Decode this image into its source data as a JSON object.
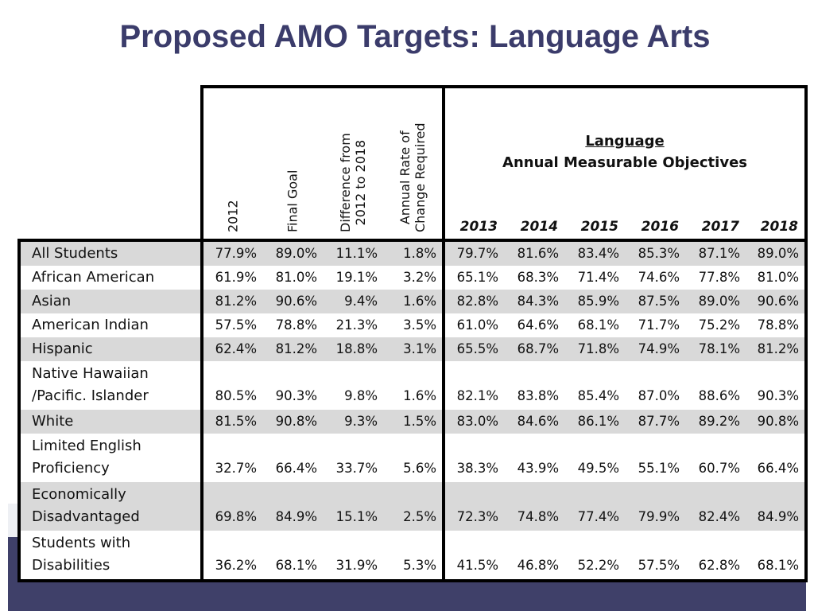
{
  "slide": {
    "title": "Proposed AMO Targets: Language Arts"
  },
  "table": {
    "column_headers": [
      "2012",
      "Final Goal",
      "Difference from 2012 to 2018",
      "Annual Rate of Change Required"
    ],
    "column_headers_lines": [
      [
        "2012"
      ],
      [
        "Final Goal"
      ],
      [
        "Difference from",
        "2012 to 2018"
      ],
      [
        "Annual Rate of",
        "Change Required"
      ]
    ],
    "objectives_heading_line1": "Language",
    "objectives_heading_line2": "Annual Measurable Objectives",
    "years": [
      "2013",
      "2014",
      "2015",
      "2016",
      "2017",
      "2018"
    ],
    "rows": [
      {
        "group": [
          "All Students"
        ],
        "values": [
          "77.9%",
          "89.0%",
          "11.1%",
          "1.8%",
          "79.7%",
          "81.6%",
          "83.4%",
          "85.3%",
          "87.1%",
          "89.0%"
        ]
      },
      {
        "group": [
          "African American"
        ],
        "values": [
          "61.9%",
          "81.0%",
          "19.1%",
          "3.2%",
          "65.1%",
          "68.3%",
          "71.4%",
          "74.6%",
          "77.8%",
          "81.0%"
        ]
      },
      {
        "group": [
          "Asian"
        ],
        "values": [
          "81.2%",
          "90.6%",
          "9.4%",
          "1.6%",
          "82.8%",
          "84.3%",
          "85.9%",
          "87.5%",
          "89.0%",
          "90.6%"
        ]
      },
      {
        "group": [
          "American Indian"
        ],
        "values": [
          "57.5%",
          "78.8%",
          "21.3%",
          "3.5%",
          "61.0%",
          "64.6%",
          "68.1%",
          "71.7%",
          "75.2%",
          "78.8%"
        ]
      },
      {
        "group": [
          "Hispanic"
        ],
        "values": [
          "62.4%",
          "81.2%",
          "18.8%",
          "3.1%",
          "65.5%",
          "68.7%",
          "71.8%",
          "74.9%",
          "78.1%",
          "81.2%"
        ]
      },
      {
        "group": [
          "Native Hawaiian",
          "/Pacific. Islander"
        ],
        "values": [
          "80.5%",
          "90.3%",
          "9.8%",
          "1.6%",
          "82.1%",
          "83.8%",
          "85.4%",
          "87.0%",
          "88.6%",
          "90.3%"
        ]
      },
      {
        "group": [
          "White"
        ],
        "values": [
          "81.5%",
          "90.8%",
          "9.3%",
          "1.5%",
          "83.0%",
          "84.6%",
          "86.1%",
          "87.7%",
          "89.2%",
          "90.8%"
        ]
      },
      {
        "group": [
          "Limited English",
          "Proficiency"
        ],
        "values": [
          "32.7%",
          "66.4%",
          "33.7%",
          "5.6%",
          "38.3%",
          "43.9%",
          "49.5%",
          "55.1%",
          "60.7%",
          "66.4%"
        ]
      },
      {
        "group": [
          "Economically",
          "Disadvantaged"
        ],
        "values": [
          "69.8%",
          "84.9%",
          "15.1%",
          "2.5%",
          "72.3%",
          "74.8%",
          "77.4%",
          "79.9%",
          "82.4%",
          "84.9%"
        ]
      },
      {
        "group": [
          "Students with",
          "Disabilities"
        ],
        "values": [
          "36.2%",
          "68.1%",
          "31.9%",
          "5.3%",
          "41.5%",
          "46.8%",
          "52.2%",
          "57.5%",
          "62.8%",
          "68.1%"
        ]
      }
    ]
  },
  "colors": {
    "title": "#3b3c6b",
    "footer_band": "#3f4069",
    "row_shade": "#d9d9d9"
  }
}
